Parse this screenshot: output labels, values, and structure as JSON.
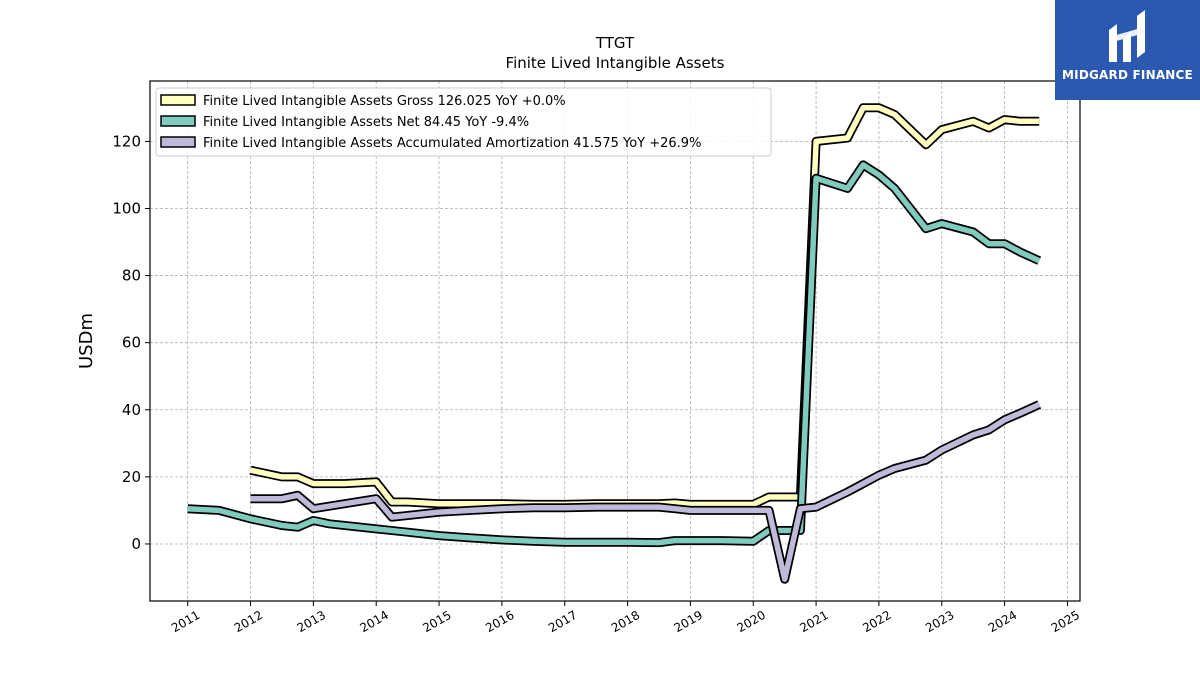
{
  "logo": {
    "text": "MIDGARD FINANCE",
    "color": "#2b59b0"
  },
  "chart_data": {
    "type": "line",
    "title": "TTGT",
    "subtitle": "Finite Lived Intangible Assets",
    "ylabel": "USDm",
    "xlabel": "",
    "xlim": [
      2010.4,
      2025.2
    ],
    "ylim": [
      -17,
      138
    ],
    "grid": true,
    "legend_position": "top-left",
    "x_ticks": [
      "2011",
      "2012",
      "2013",
      "2014",
      "2015",
      "2016",
      "2017",
      "2018",
      "2019",
      "2020",
      "2021",
      "2022",
      "2023",
      "2024",
      "2025"
    ],
    "y_ticks": [
      0,
      20,
      40,
      60,
      80,
      100,
      120
    ],
    "series": [
      {
        "name": "Finite Lived Intangible Assets Gross",
        "legend_label": "Finite Lived Intangible Assets Gross  126.025 YoY +0.0%",
        "color": "#ffffbf",
        "x": [
          2012.0,
          2012.5,
          2012.75,
          2013.0,
          2013.5,
          2014.0,
          2014.25,
          2014.5,
          2015.0,
          2015.5,
          2016.0,
          2016.5,
          2017.0,
          2017.5,
          2018.0,
          2018.5,
          2018.75,
          2019.0,
          2019.5,
          2020.0,
          2020.25,
          2020.5,
          2020.75,
          2021.0,
          2021.5,
          2021.75,
          2022.0,
          2022.25,
          2022.75,
          2023.0,
          2023.5,
          2023.75,
          2024.0,
          2024.25,
          2024.55
        ],
        "y": [
          22,
          20,
          20,
          18,
          18,
          18.5,
          12.5,
          12.5,
          12,
          12,
          12,
          11.8,
          11.8,
          12,
          12,
          12,
          12.2,
          11.8,
          11.8,
          11.8,
          14,
          14,
          14,
          120,
          121,
          130,
          130,
          128,
          119,
          123.5,
          126,
          124,
          126.5,
          126,
          126
        ]
      },
      {
        "name": "Finite Lived Intangible Assets Net",
        "legend_label": "Finite Lived Intangible Assets Net  84.45 YoY -9.4%",
        "color": "#7fcbbd",
        "x": [
          2011.0,
          2011.5,
          2012.0,
          2012.5,
          2012.75,
          2013.0,
          2013.25,
          2013.5,
          2014.0,
          2014.5,
          2015.0,
          2015.5,
          2016.0,
          2016.5,
          2017.0,
          2017.5,
          2018.0,
          2018.5,
          2018.75,
          2019.0,
          2019.5,
          2020.0,
          2020.25,
          2020.5,
          2020.75,
          2021.0,
          2021.5,
          2021.75,
          2022.0,
          2022.25,
          2022.75,
          2023.0,
          2023.5,
          2023.75,
          2024.0,
          2024.25,
          2024.55
        ],
        "y": [
          10.5,
          10,
          7.5,
          5.5,
          5,
          7,
          6,
          5.5,
          4.5,
          3.5,
          2.5,
          1.8,
          1.2,
          0.8,
          0.5,
          0.5,
          0.5,
          0.4,
          1,
          1,
          1,
          0.8,
          4,
          4,
          4,
          109,
          106,
          113,
          110,
          106,
          94,
          95.5,
          93,
          89.5,
          89.5,
          87,
          84.45
        ]
      },
      {
        "name": "Finite Lived Intangible Assets Accumulated Amortization",
        "legend_label": "Finite Lived Intangible Assets Accumulated Amortization  41.575 YoY +26.9%",
        "color": "#bebada",
        "x": [
          2012.0,
          2012.5,
          2012.75,
          2013.0,
          2013.5,
          2014.0,
          2014.25,
          2014.5,
          2015.0,
          2015.5,
          2016.0,
          2016.5,
          2017.0,
          2017.5,
          2018.0,
          2018.5,
          2018.75,
          2019.0,
          2019.5,
          2020.0,
          2020.25,
          2020.5,
          2020.75,
          2021.0,
          2021.5,
          2021.75,
          2022.0,
          2022.25,
          2022.75,
          2023.0,
          2023.5,
          2023.75,
          2024.0,
          2024.25,
          2024.55
        ],
        "y": [
          13.5,
          13.5,
          14.5,
          10.5,
          12,
          13.5,
          8,
          8.5,
          9.5,
          10,
          10.5,
          10.8,
          10.8,
          11,
          11,
          11,
          10.5,
          10,
          10,
          10,
          10,
          -10.5,
          10.5,
          11,
          15.5,
          18,
          20.5,
          22.5,
          25,
          28,
          32.5,
          34,
          37,
          39,
          41.575
        ]
      }
    ]
  }
}
